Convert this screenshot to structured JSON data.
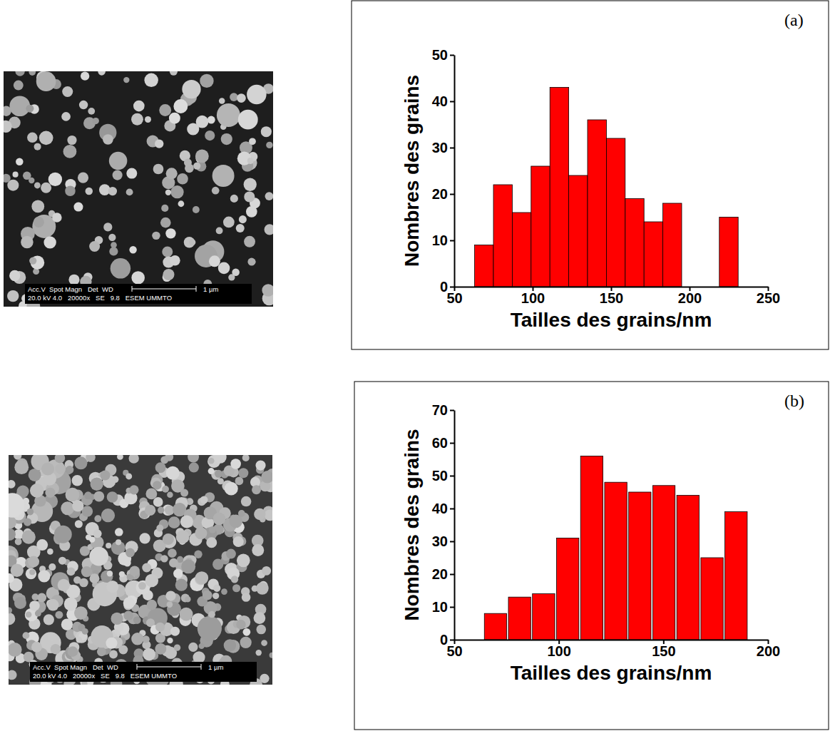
{
  "chart_data": [
    {
      "type": "histogram",
      "x_label": "Tailles des grains/nm",
      "y_label": "Nombres des grains",
      "annotations": [
        "(a)"
      ],
      "bins": [
        63,
        75,
        87,
        99,
        111,
        123,
        135,
        147,
        159,
        171,
        183,
        195,
        207,
        219,
        231
      ],
      "values": [
        9,
        22,
        16,
        26,
        43,
        24,
        36,
        32,
        19,
        14,
        18,
        0,
        0,
        15
      ],
      "color": "#ff0000",
      "xlim": [
        50,
        250
      ],
      "xticks": [
        50,
        100,
        150,
        200,
        250
      ],
      "ylim": [
        0,
        50
      ],
      "yticks": [
        0,
        10,
        20,
        30,
        40,
        50
      ],
      "grid": false
    },
    {
      "type": "histogram",
      "x_label": "Tailles des grains/nm",
      "y_label": "Nombres des grains",
      "annotations": [
        "(b)"
      ],
      "bins": [
        64,
        75.5,
        87,
        98.5,
        110,
        121.5,
        133,
        144.5,
        156,
        167.5,
        179,
        190.5
      ],
      "values": [
        8,
        13,
        14,
        31,
        56,
        48,
        45,
        47,
        44,
        25,
        39
      ],
      "color": "#ff0000",
      "xlim": [
        50,
        200
      ],
      "xticks": [
        50,
        100,
        150,
        200
      ],
      "ylim": [
        0,
        70
      ],
      "yticks": [
        0,
        10,
        20,
        30,
        40,
        50,
        60,
        70
      ],
      "grid": false
    }
  ],
  "micrographs": [
    {
      "info_line1": "Acc.V  Spot Magn   Det  WD",
      "scale_label": "1 µm",
      "info_line2": "20.0 kV 4.0   20000x   SE   9.8   ESEM UMMTO"
    },
    {
      "info_line1": "Acc.V  Spot Magn   Det  WD",
      "scale_label": "1 µm",
      "info_line2": "20.0 kV 4.0   20000x   SE   9.8   ESEM UMMTO"
    }
  ]
}
